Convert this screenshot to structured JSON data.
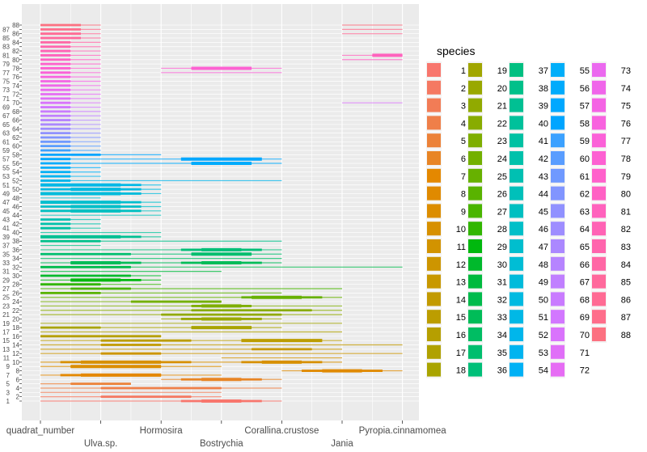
{
  "chart_data": {
    "type": "line",
    "title": "",
    "xlabel": "",
    "ylabel": "",
    "categories": [
      "quadrat_number",
      "Ulva.sp.",
      "Hormosira",
      "Bostrychia",
      "Corallina.crustose",
      "Jania",
      "Pyropia.cinnamomea"
    ],
    "y_ticks_range": [
      1,
      88
    ],
    "legend": {
      "title": "species",
      "placement": "right",
      "columns": 5,
      "entries_range": [
        1,
        88
      ]
    },
    "palette": "ggplot hue (hcl l=65 c=100, h 15-375)",
    "grid": true,
    "species": [
      {
        "id": 1,
        "extent": [
          0,
          4
        ],
        "thick": [
          [
            2.33,
            3.67
          ],
          [
            2.67,
            3.33
          ]
        ]
      },
      {
        "id": 2,
        "extent": [
          0,
          3
        ],
        "thick": [
          [
            1,
            2.5
          ]
        ]
      },
      {
        "id": 3,
        "extent": [
          0,
          3
        ],
        "thick": []
      },
      {
        "id": 4,
        "extent": [
          0,
          4
        ],
        "thick": [
          [
            1,
            3
          ]
        ]
      },
      {
        "id": 5,
        "extent": [
          0,
          1.5
        ],
        "thick": [
          [
            0.5,
            1.5
          ]
        ]
      },
      {
        "id": 6,
        "extent": [
          2,
          4
        ],
        "thick": [
          [
            2.33,
            3.67
          ],
          [
            2.67,
            3.33
          ]
        ]
      },
      {
        "id": 7,
        "extent": [
          0,
          3
        ],
        "thick": [
          [
            0.33,
            2
          ],
          [
            0.67,
            2
          ]
        ]
      },
      {
        "id": 8,
        "extent": [
          4,
          6
        ],
        "thick": [
          [
            4.33,
            5.67
          ],
          [
            4.67,
            5.33
          ]
        ]
      },
      {
        "id": 9,
        "extent": [
          0,
          3
        ],
        "thick": [
          [
            0.5,
            1.5
          ],
          [
            0.5,
            2
          ]
        ]
      },
      {
        "id": 10,
        "extent": [
          0,
          5
        ],
        "thick": [
          [
            0.33,
            2.5
          ],
          [
            0.67,
            2
          ],
          [
            3.33,
            4.67
          ],
          [
            3.67,
            4.33
          ]
        ]
      },
      {
        "id": 11,
        "extent": [
          3,
          5
        ],
        "thick": []
      },
      {
        "id": 12,
        "extent": [
          0,
          6
        ],
        "thick": [
          [
            1,
            2
          ]
        ]
      },
      {
        "id": 13,
        "extent": [
          0,
          5
        ],
        "thick": [
          [
            3.5,
            4.5
          ]
        ]
      },
      {
        "id": 14,
        "extent": [
          0,
          6
        ],
        "thick": [
          [
            1,
            2
          ]
        ]
      },
      {
        "id": 15,
        "extent": [
          0,
          5
        ],
        "thick": [
          [
            1,
            2.5
          ],
          [
            3.33,
            4.67
          ],
          [
            3.67,
            4.5
          ]
        ]
      },
      {
        "id": 16,
        "extent": [
          0,
          2
        ],
        "thick": [
          [
            0,
            2
          ]
        ]
      },
      {
        "id": 17,
        "extent": [
          0,
          5
        ],
        "thick": []
      },
      {
        "id": 18,
        "extent": [
          0,
          4
        ],
        "thick": [
          [
            0,
            1
          ],
          [
            2.5,
            3.5
          ]
        ]
      },
      {
        "id": 19,
        "extent": [
          0,
          5
        ],
        "thick": []
      },
      {
        "id": 20,
        "extent": [
          2,
          4
        ],
        "thick": [
          [
            2.33,
            3.67
          ],
          [
            2.67,
            3.33
          ]
        ]
      },
      {
        "id": 21,
        "extent": [
          0,
          5
        ],
        "thick": [
          [
            2,
            4
          ]
        ]
      },
      {
        "id": 22,
        "extent": [
          0,
          5
        ],
        "thick": [
          [
            2.5,
            4.5
          ]
        ]
      },
      {
        "id": 23,
        "extent": [
          0,
          5
        ],
        "thick": [
          [
            2.5,
            3.5
          ],
          [
            2.67,
            3.33
          ]
        ]
      },
      {
        "id": 24,
        "extent": [
          0,
          3
        ],
        "thick": [
          [
            1.5,
            3
          ]
        ]
      },
      {
        "id": 25,
        "extent": [
          0,
          5
        ],
        "thick": [
          [
            3.33,
            4.67
          ],
          [
            3.5,
            4.33
          ]
        ]
      },
      {
        "id": 26,
        "extent": [
          0,
          4
        ],
        "thick": [
          [
            0,
            1
          ]
        ]
      },
      {
        "id": 27,
        "extent": [
          0,
          5
        ],
        "thick": [
          [
            0.5,
            1.5
          ]
        ]
      },
      {
        "id": 28,
        "extent": [
          0,
          2
        ],
        "thick": [
          [
            0,
            1
          ]
        ]
      },
      {
        "id": 29,
        "extent": [
          0,
          2
        ],
        "thick": [
          [
            0.5,
            1.67
          ],
          [
            0.5,
            1.33
          ]
        ]
      },
      {
        "id": 30,
        "extent": [
          0,
          2
        ],
        "thick": [
          [
            0,
            1.5
          ]
        ]
      },
      {
        "id": 31,
        "extent": [
          0,
          3
        ],
        "thick": []
      },
      {
        "id": 32,
        "extent": [
          0,
          6
        ],
        "thick": [
          [
            0,
            1.5
          ]
        ]
      },
      {
        "id": 33,
        "extent": [
          0,
          4
        ],
        "thick": [
          [
            0.5,
            1.67
          ],
          [
            0.5,
            1.33
          ],
          [
            2.33,
            3.67
          ],
          [
            2.67,
            3.33
          ]
        ]
      },
      {
        "id": 34,
        "extent": [
          0,
          4
        ],
        "thick": []
      },
      {
        "id": 35,
        "extent": [
          0,
          4
        ],
        "thick": [
          [
            0,
            1.5
          ],
          [
            2.5,
            3.5
          ]
        ]
      },
      {
        "id": 36,
        "extent": [
          0,
          4
        ],
        "thick": [
          [
            2.33,
            3.67
          ],
          [
            2.67,
            3.33
          ]
        ]
      },
      {
        "id": 37,
        "extent": [
          0,
          1
        ],
        "thick": []
      },
      {
        "id": 38,
        "extent": [
          0,
          4
        ],
        "thick": [
          [
            0,
            1
          ]
        ]
      },
      {
        "id": 39,
        "extent": [
          0,
          2
        ],
        "thick": [
          [
            0,
            1.67
          ],
          [
            0,
            1.33
          ]
        ]
      },
      {
        "id": 40,
        "extent": [
          0,
          2
        ],
        "thick": []
      },
      {
        "id": 41,
        "extent": [
          0,
          1
        ],
        "thick": [
          [
            0,
            0.5
          ]
        ]
      },
      {
        "id": 42,
        "extent": [
          0,
          1
        ],
        "thick": [
          [
            0,
            0.5
          ]
        ]
      },
      {
        "id": 43,
        "extent": [
          0,
          1
        ],
        "thick": [
          [
            0,
            0.5
          ]
        ]
      },
      {
        "id": 44,
        "extent": [
          0,
          2
        ],
        "thick": []
      },
      {
        "id": 45,
        "extent": [
          0,
          2
        ],
        "thick": [
          [
            0,
            1.67
          ],
          [
            0.5,
            1.33
          ]
        ]
      },
      {
        "id": 46,
        "extent": [
          0,
          2
        ],
        "thick": [
          [
            0,
            1.67
          ],
          [
            0.5,
            1.33
          ]
        ]
      },
      {
        "id": 47,
        "extent": [
          0,
          2
        ],
        "thick": [
          [
            0,
            1.67
          ],
          [
            0,
            1.33
          ]
        ]
      },
      {
        "id": 48,
        "extent": [
          0,
          1
        ],
        "thick": []
      },
      {
        "id": 49,
        "extent": [
          0,
          2
        ],
        "thick": [
          [
            0,
            1.67
          ],
          [
            0,
            1.33
          ]
        ]
      },
      {
        "id": 50,
        "extent": [
          0,
          2
        ],
        "thick": [
          [
            0,
            1.67
          ],
          [
            0.5,
            1.33
          ]
        ]
      },
      {
        "id": 51,
        "extent": [
          0,
          2
        ],
        "thick": [
          [
            0,
            1.67
          ],
          [
            0,
            1.33
          ]
        ]
      },
      {
        "id": 52,
        "extent": [
          0,
          4
        ],
        "thick": [
          [
            0,
            0.5
          ]
        ]
      },
      {
        "id": 53,
        "extent": [
          0,
          1
        ],
        "thick": [
          [
            0,
            0.5
          ]
        ]
      },
      {
        "id": 54,
        "extent": [
          0,
          1
        ],
        "thick": [
          [
            0,
            0.5
          ]
        ]
      },
      {
        "id": 55,
        "extent": [
          0,
          1
        ],
        "thick": [
          [
            0,
            0.5
          ]
        ]
      },
      {
        "id": 56,
        "extent": [
          0,
          4
        ],
        "thick": [
          [
            0,
            0.5
          ],
          [
            2.5,
            3.5
          ]
        ]
      },
      {
        "id": 57,
        "extent": [
          0,
          4
        ],
        "thick": [
          [
            0,
            0.5
          ],
          [
            2.33,
            3.67
          ],
          [
            2.67,
            3.33
          ]
        ]
      },
      {
        "id": 58,
        "extent": [
          0,
          2
        ],
        "thick": [
          [
            0,
            1
          ]
        ]
      },
      {
        "id": 59,
        "extent": [
          0,
          1
        ],
        "thick": [
          [
            0,
            0.5
          ]
        ]
      },
      {
        "id": 60,
        "extent": [
          0,
          1
        ],
        "thick": [
          [
            0,
            0.5
          ]
        ]
      },
      {
        "id": 61,
        "extent": [
          0,
          1
        ],
        "thick": [
          [
            0,
            0.5
          ]
        ]
      },
      {
        "id": 62,
        "extent": [
          0,
          1
        ],
        "thick": [
          [
            0,
            0.5
          ]
        ]
      },
      {
        "id": 63,
        "extent": [
          0,
          1
        ],
        "thick": [
          [
            0,
            0.5
          ]
        ]
      },
      {
        "id": 64,
        "extent": [
          0,
          1
        ],
        "thick": [
          [
            0,
            0.5
          ]
        ]
      },
      {
        "id": 65,
        "extent": [
          0,
          1
        ],
        "thick": [
          [
            0,
            0.5
          ]
        ]
      },
      {
        "id": 66,
        "extent": [
          0,
          1
        ],
        "thick": [
          [
            0,
            0.5
          ]
        ]
      },
      {
        "id": 67,
        "extent": [
          0,
          1
        ],
        "thick": [
          [
            0,
            0.5
          ]
        ]
      },
      {
        "id": 68,
        "extent": [
          0,
          1
        ],
        "thick": [
          [
            0,
            0.5
          ]
        ]
      },
      {
        "id": 69,
        "extent": [
          0,
          1
        ],
        "thick": [
          [
            0,
            0.5
          ]
        ]
      },
      {
        "id": 70,
        "extent": [
          0,
          1
        ],
        "thick": [
          [
            0,
            0.5
          ]
        ],
        "extra": [
          5,
          6
        ]
      },
      {
        "id": 71,
        "extent": [
          0,
          1
        ],
        "thick": [
          [
            0,
            0.5
          ]
        ]
      },
      {
        "id": 72,
        "extent": [
          0,
          1
        ],
        "thick": [
          [
            0,
            0.5
          ]
        ]
      },
      {
        "id": 73,
        "extent": [
          0,
          1
        ],
        "thick": [
          [
            0,
            0.5
          ]
        ]
      },
      {
        "id": 74,
        "extent": [
          0,
          1
        ],
        "thick": [
          [
            0,
            0.5
          ]
        ]
      },
      {
        "id": 75,
        "extent": [
          0,
          1
        ],
        "thick": [
          [
            0,
            0.5
          ]
        ]
      },
      {
        "id": 76,
        "extent": [
          0,
          1
        ],
        "thick": [
          [
            0,
            0.5
          ]
        ]
      },
      {
        "id": 77,
        "extent": [
          0,
          1
        ],
        "thick": [
          [
            0,
            0.5
          ]
        ],
        "extra": [
          2,
          4
        ]
      },
      {
        "id": 78,
        "extent": [
          0,
          1
        ],
        "thick": [
          [
            0,
            0.5
          ],
          [
            2.5,
            3.5
          ]
        ],
        "extra": [
          2,
          4
        ]
      },
      {
        "id": 79,
        "extent": [
          0,
          1
        ],
        "thick": [
          [
            0,
            0.5
          ]
        ]
      },
      {
        "id": 80,
        "extent": [
          0,
          1
        ],
        "thick": [
          [
            0,
            0.5
          ]
        ],
        "extra": [
          5,
          6
        ]
      },
      {
        "id": 81,
        "extent": [
          0,
          1
        ],
        "thick": [
          [
            0,
            0.5
          ],
          [
            5.5,
            6
          ]
        ],
        "extra": [
          5,
          6
        ]
      },
      {
        "id": 82,
        "extent": [
          0,
          1
        ],
        "thick": [
          [
            0,
            0.5
          ]
        ]
      },
      {
        "id": 83,
        "extent": [
          0,
          1
        ],
        "thick": [
          [
            0,
            0.5
          ]
        ]
      },
      {
        "id": 84,
        "extent": [
          0,
          1
        ],
        "thick": [
          [
            0,
            0.5
          ]
        ]
      },
      {
        "id": 85,
        "extent": [
          0,
          1
        ],
        "thick": [
          [
            0,
            0.67
          ]
        ]
      },
      {
        "id": 86,
        "extent": [
          0,
          1
        ],
        "thick": [
          [
            0,
            0.67
          ]
        ],
        "extra": [
          5,
          6
        ]
      },
      {
        "id": 87,
        "extent": [
          0,
          1
        ],
        "thick": [
          [
            0,
            0.67
          ]
        ],
        "extra": [
          5,
          6
        ]
      },
      {
        "id": 88,
        "extent": [
          0,
          1
        ],
        "thick": [
          [
            0,
            0.67
          ]
        ],
        "extra": [
          5,
          6
        ]
      }
    ]
  },
  "colors": {
    "panel": "#EBEBEB",
    "grid": "#FFFFFF",
    "axis_text": "#4D4D4D"
  }
}
